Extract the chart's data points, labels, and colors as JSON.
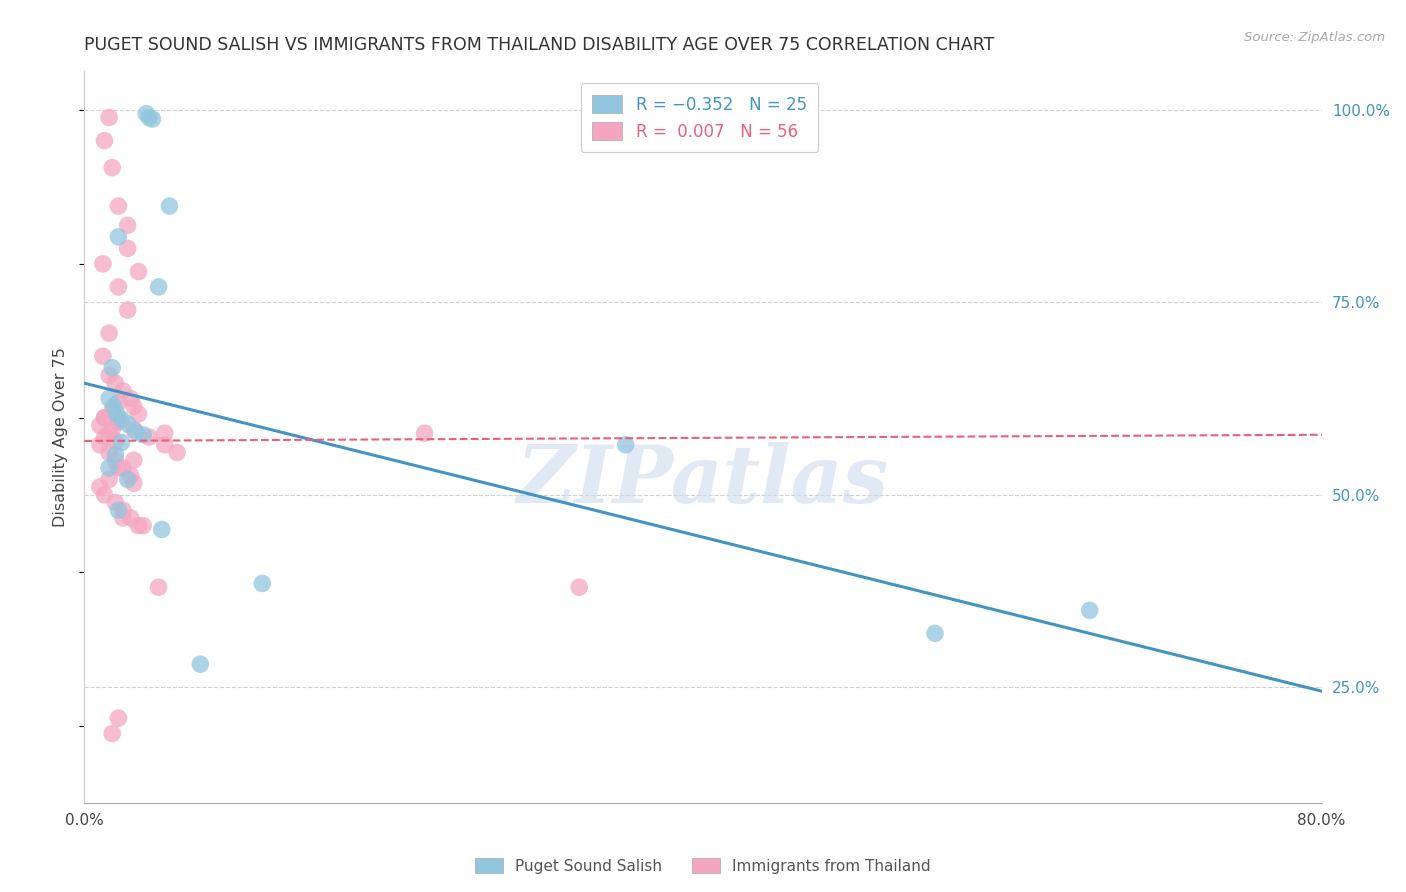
{
  "title": "PUGET SOUND SALISH VS IMMIGRANTS FROM THAILAND DISABILITY AGE OVER 75 CORRELATION CHART",
  "source": "Source: ZipAtlas.com",
  "ylabel": "Disability Age Over 75",
  "xlim": [
    0.0,
    0.8
  ],
  "ylim": [
    0.1,
    1.05
  ],
  "yticks": [
    0.25,
    0.5,
    0.75,
    1.0
  ],
  "ytick_labels": [
    "25.0%",
    "50.0%",
    "75.0%",
    "100.0%"
  ],
  "xticks": [
    0.0,
    0.1,
    0.2,
    0.3,
    0.4,
    0.5,
    0.6,
    0.7,
    0.8
  ],
  "xtick_labels": [
    "0.0%",
    "",
    "",
    "",
    "",
    "",
    "",
    "",
    "80.0%"
  ],
  "legend_blue_label": "R = −0.352   N = 25",
  "legend_pink_label": "R =  0.007   N = 56",
  "blue_color": "#92c5de",
  "pink_color": "#f4a6c0",
  "blue_line_color": "#4393c3",
  "pink_line_color": "#e8607a",
  "watermark": "ZIPatlas",
  "blue_line_x0": 0.0,
  "blue_line_y0": 0.645,
  "blue_line_x1": 0.8,
  "blue_line_y1": 0.245,
  "pink_line_x0": 0.0,
  "pink_line_y0": 0.57,
  "pink_line_x1": 0.8,
  "pink_line_y1": 0.578,
  "blue_scatter_x": [
    0.04,
    0.042,
    0.044,
    0.055,
    0.022,
    0.048,
    0.018,
    0.016,
    0.019,
    0.021,
    0.024,
    0.028,
    0.033,
    0.038,
    0.024,
    0.02,
    0.016,
    0.028,
    0.022,
    0.05,
    0.35,
    0.55,
    0.65,
    0.075,
    0.115
  ],
  "blue_scatter_y": [
    0.995,
    0.99,
    0.988,
    0.875,
    0.835,
    0.77,
    0.665,
    0.625,
    0.615,
    0.605,
    0.598,
    0.592,
    0.582,
    0.578,
    0.568,
    0.552,
    0.535,
    0.52,
    0.48,
    0.455,
    0.565,
    0.32,
    0.35,
    0.28,
    0.385
  ],
  "pink_scatter_x": [
    0.018,
    0.022,
    0.012,
    0.022,
    0.028,
    0.016,
    0.012,
    0.016,
    0.02,
    0.025,
    0.03,
    0.032,
    0.035,
    0.022,
    0.018,
    0.013,
    0.01,
    0.016,
    0.02,
    0.025,
    0.03,
    0.032,
    0.013,
    0.022,
    0.032,
    0.042,
    0.052,
    0.06,
    0.032,
    0.022,
    0.016,
    0.01,
    0.013,
    0.02,
    0.025,
    0.03,
    0.035,
    0.022,
    0.018,
    0.013,
    0.01,
    0.016,
    0.02,
    0.025,
    0.052,
    0.22,
    0.32,
    0.035,
    0.028,
    0.022,
    0.018,
    0.013,
    0.016,
    0.048,
    0.038,
    0.028
  ],
  "pink_scatter_y": [
    0.925,
    0.875,
    0.8,
    0.77,
    0.74,
    0.71,
    0.68,
    0.655,
    0.645,
    0.635,
    0.625,
    0.615,
    0.605,
    0.595,
    0.585,
    0.575,
    0.565,
    0.555,
    0.545,
    0.535,
    0.525,
    0.515,
    0.6,
    0.595,
    0.585,
    0.575,
    0.565,
    0.555,
    0.545,
    0.535,
    0.52,
    0.51,
    0.5,
    0.49,
    0.48,
    0.47,
    0.46,
    0.62,
    0.61,
    0.6,
    0.59,
    0.58,
    0.57,
    0.47,
    0.58,
    0.58,
    0.38,
    0.79,
    0.82,
    0.21,
    0.19,
    0.96,
    0.99,
    0.38,
    0.46,
    0.85
  ],
  "background_color": "#ffffff",
  "grid_color": "#d0d0d0"
}
